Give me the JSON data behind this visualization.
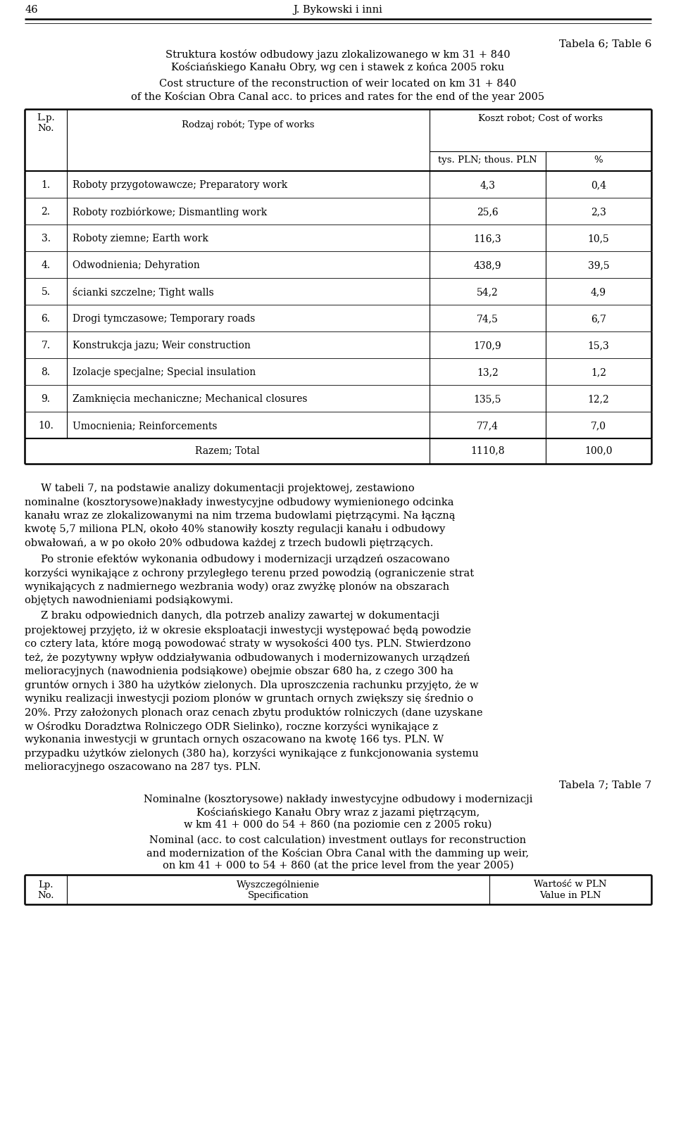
{
  "page_number": "46",
  "header_author": "J. Bykowski i inni",
  "table6_label": "Tabela 6; Table 6",
  "table6_title_pl_1": "Struktura kostów odbudowy jazu zlokalizowanego w km 31 + 840",
  "table6_title_pl_2": "Kościańskiego Kanału Obry, wg cen i stawek z końca 2005 roku",
  "table6_title_en_1": "Cost structure of the reconstruction of weir located on km 31 + 840",
  "table6_title_en_2": "of the Kościan Obra Canal acc. to prices and rates for the end of the year 2005",
  "col_header_lp": "L.p.\nNo.",
  "col_header_type": "Rodzaj robót; Type of works",
  "col_header_cost": "Koszt robot; Cost of works",
  "col_header_pln": "tys. PLN; thous. PLN",
  "col_header_pct": "%",
  "rows": [
    {
      "no": "1.",
      "desc": "Roboty przygotowawcze; Preparatory work",
      "pln": "4,3",
      "pct": "0,4"
    },
    {
      "no": "2.",
      "desc": "Roboty rozbiórkowe; Dismantling work",
      "pln": "25,6",
      "pct": "2,3"
    },
    {
      "no": "3.",
      "desc": "Roboty ziemne; Earth work",
      "pln": "116,3",
      "pct": "10,5"
    },
    {
      "no": "4.",
      "desc": "Odwodnienia; Dehyration",
      "pln": "438,9",
      "pct": "39,5"
    },
    {
      "no": "5.",
      "desc": "ścianki szczelne; Tight walls",
      "pln": "54,2",
      "pct": "4,9"
    },
    {
      "no": "6.",
      "desc": "Drogi tymczasowe; Temporary roads",
      "pln": "74,5",
      "pct": "6,7"
    },
    {
      "no": "7.",
      "desc": "Konstrukcja jazu; Weir construction",
      "pln": "170,9",
      "pct": "15,3"
    },
    {
      "no": "8.",
      "desc": "Izolacje specjalne; Special insulation",
      "pln": "13,2",
      "pct": "1,2"
    },
    {
      "no": "9.",
      "desc": "Zamknięcia mechaniczne; Mechanical closures",
      "pln": "135,5",
      "pct": "12,2"
    },
    {
      "no": "10.",
      "desc": "Umocnienia; Reinforcements",
      "pln": "77,4",
      "pct": "7,0"
    }
  ],
  "total_row": {
    "desc": "Razem; Total",
    "pln": "1110,8",
    "pct": "100,0"
  },
  "para1_lines": [
    "     W tabeli 7, na podstawie analizy dokumentacji projektowej, zestawiono",
    "nominalne (kosztorysowe)nakłady inwestycyjne odbudowy wymienionego odcinka",
    "kanału wraz ze zlokalizowanymi na nim trzema budowlami piętrzącymi. Na łączną",
    "kwotę 5,7 miliona PLN, około 40% stanowiły koszty regulacji kanału i odbudowy",
    "obwałowań, a w po około 20% odbudowa każdej z trzech budowli piętrzących."
  ],
  "para2_lines": [
    "     Po stronie efektów wykonania odbudowy i modernizacji urządzeń oszacowano",
    "korzyści wynikające z ochrony przyległego terenu przed powodzią (ograniczenie strat",
    "wynikających z nadmiernego wezbrania wody) oraz zwyżkę plonów na obszarach",
    "objętych nawodnieniami podsiąkowymi."
  ],
  "para3_lines": [
    "     Z braku odpowiednich danych, dla potrzeb analizy zawartej w dokumentacji",
    "projektowej przyjęto, iż w okresie eksploatacji inwestycji występować będą powodzie",
    "co cztery lata, które mogą powodować straty w wysokości 400 tys. PLN. Stwierdzono",
    "też, że pozytywny wpływ oddziaływania odbudowanych i modernizowanych urządzeń",
    "melioracyjnych (nawodnienia podsiąkowe) obejmie obszar 680 ha, z czego 300 ha",
    "gruntów ornych i 380 ha użytków zielonych. Dla uproszczenia rachunku przyjęto, że w",
    "wyniku realizacji inwestycji poziom plonów w gruntach ornych zwiększy się średnio o",
    "20%. Przy założonych plonach oraz cenach zbytu produktów rolniczych (dane uzyskane",
    "w Ośrodku Doradztwa Rolniczego ODR Sielinko), roczne korzyści wynikające z",
    "wykonania inwestycji w gruntach ornych oszacowano na kwotę 166 tys. PLN. W",
    "przypadku użytków zielonych (380 ha), korzyści wynikające z funkcjonowania systemu",
    "melioracyjnego oszacowano na 287 tys. PLN."
  ],
  "table7_label": "Tabela 7; Table 7",
  "table7_title_pl_1": "Nominalne (kosztorysowe) nakłady inwestycyjne odbudowy i modernizacji",
  "table7_title_pl_2": "Kościańskiego Kanału Obry wraz z jazami piętrzącym,",
  "table7_title_pl_3": "w km 41 + 000 do 54 + 860 (na poziomie cen z 2005 roku)",
  "table7_title_en_1": "Nominal (acc. to cost calculation) investment outlays for reconstruction",
  "table7_title_en_2": "and modernization of the Kościan Obra Canal with the damming up weir,",
  "table7_title_en_3": "on km 41 + 000 to 54 + 860 (at the price level from the year 2005)",
  "table7_col1": "Lp.\nNo.",
  "table7_col2": "Wyszczególnienie\nSpecification",
  "table7_col3": "Wartość w PLN\nValue in PLN"
}
